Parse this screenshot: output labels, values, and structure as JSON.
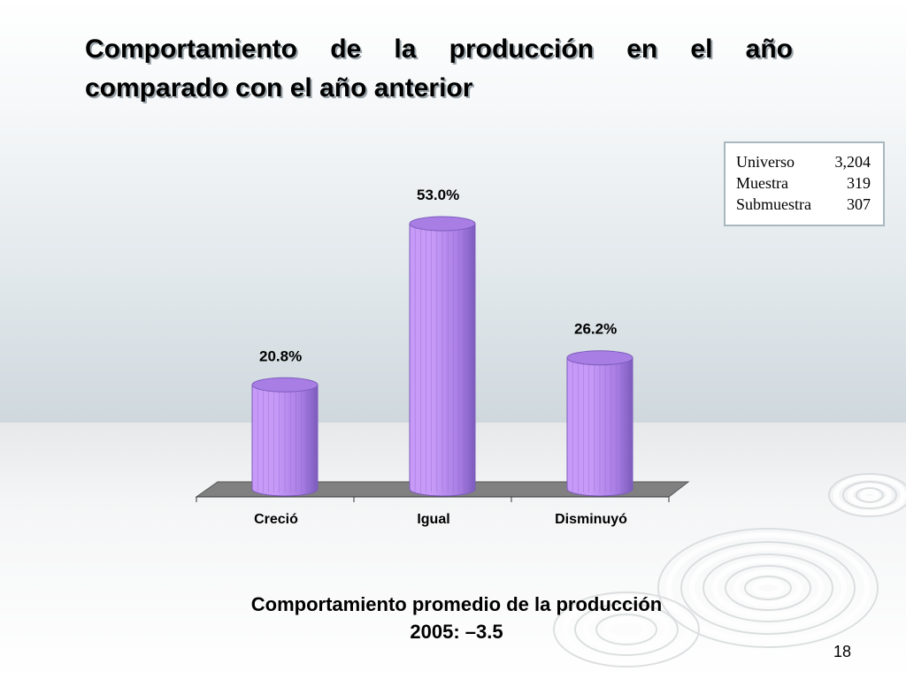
{
  "slide": {
    "title_line1": [
      "Comportamiento",
      "de",
      "la",
      "producción",
      "en",
      "el",
      "año"
    ],
    "title_line2": "comparado con el año anterior",
    "page_number": "18"
  },
  "info_box": {
    "rows": [
      {
        "label": "Universo",
        "value": "3,204"
      },
      {
        "label": "Muestra",
        "value": "319"
      },
      {
        "label": "Submuestra",
        "value": "307"
      }
    ]
  },
  "summary": {
    "line1": "Comportamiento promedio de la producción",
    "line2": "2005:  –3.5"
  },
  "colors": {
    "bar_light": "#c79af7",
    "bar_mid": "#a97ee4",
    "bar_dark": "#7c5cbd",
    "floor": "#808080"
  },
  "chart_data": {
    "type": "bar",
    "style": "3d-cylinder",
    "categories": [
      "Creció",
      "Igual",
      "Disminuyó"
    ],
    "values": [
      20.8,
      53.0,
      26.2
    ],
    "data_labels": [
      "20.8%",
      "53.0%",
      "26.2%"
    ],
    "unit": "%",
    "ylim": [
      0,
      60
    ],
    "grid": false,
    "legend": "none"
  }
}
